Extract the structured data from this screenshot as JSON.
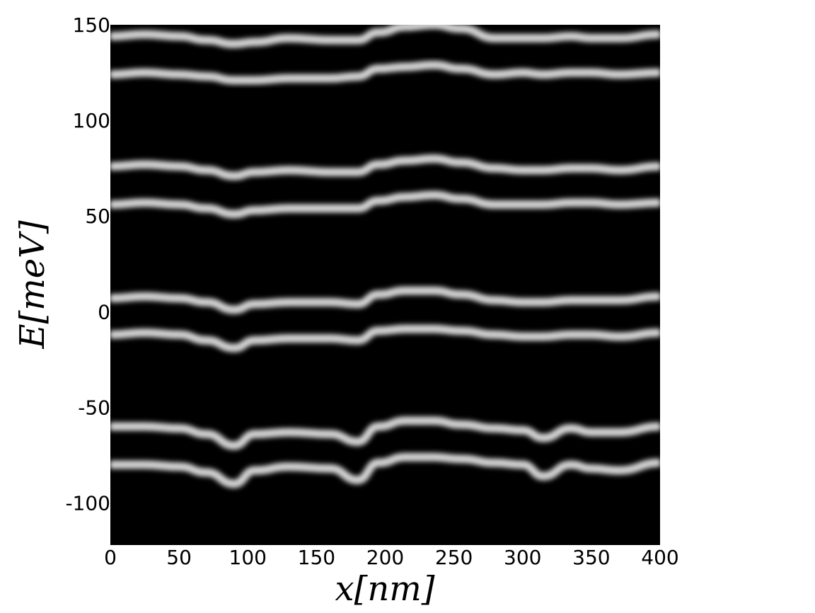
{
  "chart_data": {
    "type": "heatmap",
    "title": "",
    "xlabel": "x[nm]",
    "ylabel": "E[meV]",
    "xlim": [
      0,
      400
    ],
    "ylim": [
      -122,
      150
    ],
    "x_ticks": [
      0,
      50,
      100,
      150,
      200,
      250,
      300,
      350,
      400
    ],
    "x_tick_labels": [
      "0",
      "50",
      "100",
      "150",
      "200",
      "250",
      "300",
      "350",
      "400"
    ],
    "y_ticks": [
      150,
      100,
      50,
      0,
      -50,
      -100
    ],
    "y_tick_labels": [
      "150",
      "100",
      "50",
      "0",
      "-50",
      "-100"
    ],
    "colormap": "gray",
    "background_color": "#000000",
    "band_color": "#ffffff",
    "bands": {
      "x": [
        0,
        25,
        50,
        70,
        90,
        105,
        130,
        160,
        180,
        195,
        215,
        235,
        255,
        280,
        300,
        315,
        335,
        350,
        370,
        400
      ],
      "series": [
        {
          "values": [
            144,
            145,
            144,
            142,
            140,
            141,
            143,
            142,
            142,
            146,
            149,
            150,
            148,
            143,
            143,
            143,
            144,
            143,
            143,
            145
          ]
        },
        {
          "values": [
            124,
            125,
            124,
            123,
            121,
            121,
            122,
            122,
            123,
            127,
            128,
            129,
            127,
            124,
            125,
            124,
            125,
            125,
            124,
            125
          ]
        },
        {
          "values": [
            76,
            77,
            76,
            74,
            71,
            73,
            74,
            73,
            73,
            77,
            79,
            80,
            78,
            75,
            74,
            74,
            75,
            75,
            74,
            76
          ]
        },
        {
          "values": [
            56,
            57,
            56,
            54,
            51,
            53,
            54,
            54,
            54,
            58,
            60,
            61,
            59,
            56,
            56,
            56,
            57,
            57,
            56,
            57
          ]
        },
        {
          "values": [
            7,
            8,
            7,
            5,
            1,
            4,
            5,
            5,
            4,
            9,
            11,
            11,
            9,
            6,
            5,
            5,
            6,
            6,
            6,
            8
          ]
        },
        {
          "values": [
            -12,
            -11,
            -12,
            -15,
            -19,
            -15,
            -14,
            -14,
            -15,
            -10,
            -9,
            -9,
            -10,
            -12,
            -13,
            -13,
            -12,
            -12,
            -13,
            -11
          ]
        },
        {
          "values": [
            -60,
            -60,
            -61,
            -64,
            -70,
            -64,
            -63,
            -64,
            -68,
            -60,
            -57,
            -57,
            -59,
            -61,
            -62,
            -66,
            -61,
            -63,
            -63,
            -60
          ]
        },
        {
          "values": [
            -80,
            -80,
            -81,
            -84,
            -90,
            -83,
            -81,
            -82,
            -88,
            -79,
            -76,
            -76,
            -77,
            -79,
            -80,
            -86,
            -80,
            -82,
            -83,
            -79
          ]
        }
      ]
    }
  }
}
